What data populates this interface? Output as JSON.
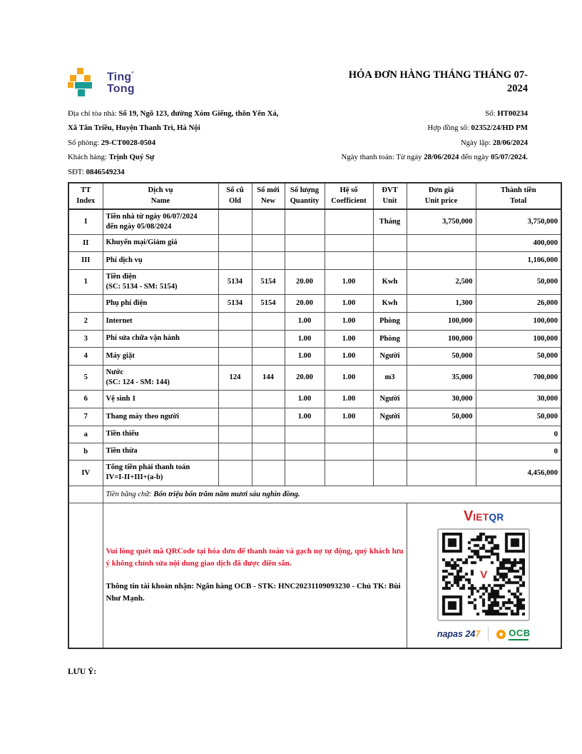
{
  "brand": {
    "name_line1": "Ting",
    "name_line2": "Tong",
    "reg_mark": "°"
  },
  "title": "HÓA ĐƠN HÀNG THÁNG THÁNG 07-\n2024",
  "info_left": {
    "address_label": "Địa chỉ tòa nhà: ",
    "address_value_line1": "Số 19, Ngõ 123, đường Xóm Giếng, thôn Yên Xá,",
    "address_value_line2": "Xã Tân Triều, Huyện Thanh Trì, Hà Nội",
    "room_label": "Số phòng: ",
    "room_value": "29-CT0028-0504",
    "customer_label": "Khách hàng: ",
    "customer_value": "Trịnh Quý Sự",
    "phone_label": "SĐT: ",
    "phone_value": "0846549234"
  },
  "info_right": {
    "invoice_no_label": "Số: ",
    "invoice_no_value": "HT00234",
    "contract_label": "Hợp đồng số: ",
    "contract_value": "02352/24/HD PM",
    "issue_date_label": "Ngày lập: ",
    "issue_date_value": "28/06/2024",
    "payment_label": "Ngày thanh toán: Từ ngày ",
    "payment_from": "28/06/2024",
    "payment_sep": " đến ngày ",
    "payment_to": "05/07/2024."
  },
  "table": {
    "headers": [
      "TT\nIndex",
      "Dịch vụ\nName",
      "Số cũ\nOld",
      "Số mới\nNew",
      "Số lượng\nQuantity",
      "Hệ số\nCoefficient",
      "ĐVT\nUnit",
      "Đơn giá\nUnit price",
      "Thành tiền\nTotal"
    ],
    "rows": [
      {
        "tt": "I",
        "name": "Tiền nhà từ ngày 06/07/2024\nđến ngày 05/08/2024",
        "old": "",
        "new": "",
        "qty": "",
        "coef": "",
        "unit": "Tháng",
        "price": "3,750,000",
        "total": "3,750,000"
      },
      {
        "tt": "II",
        "name": "Khuyến mại/Giảm giá",
        "old": "",
        "new": "",
        "qty": "",
        "coef": "",
        "unit": "",
        "price": "",
        "total": "400,000"
      },
      {
        "tt": "III",
        "name": "Phí dịch vụ",
        "old": "",
        "new": "",
        "qty": "",
        "coef": "",
        "unit": "",
        "price": "",
        "total": "1,106,000"
      },
      {
        "tt": "1",
        "name": "Tiền điện\n(SC: 5134 - SM: 5154)",
        "old": "5134",
        "new": "5154",
        "qty": "20.00",
        "coef": "1.00",
        "unit": "Kwh",
        "price": "2,500",
        "total": "50,000"
      },
      {
        "tt": "",
        "name": "Phụ phí điện",
        "old": "5134",
        "new": "5154",
        "qty": "20.00",
        "coef": "1.00",
        "unit": "Kwh",
        "price": "1,300",
        "total": "26,000"
      },
      {
        "tt": "2",
        "name": "Internet",
        "old": "",
        "new": "",
        "qty": "1.00",
        "coef": "1.00",
        "unit": "Phòng",
        "price": "100,000",
        "total": "100,000"
      },
      {
        "tt": "3",
        "name": "Phí sửa chữa vận hành",
        "old": "",
        "new": "",
        "qty": "1.00",
        "coef": "1.00",
        "unit": "Phòng",
        "price": "100,000",
        "total": "100,000"
      },
      {
        "tt": "4",
        "name": "Máy giặt",
        "old": "",
        "new": "",
        "qty": "1.00",
        "coef": "1.00",
        "unit": "Người",
        "price": "50,000",
        "total": "50,000"
      },
      {
        "tt": "5",
        "name": "Nước\n(SC: 124 - SM: 144)",
        "old": "124",
        "new": "144",
        "qty": "20.00",
        "coef": "1.00",
        "unit": "m3",
        "price": "35,000",
        "total": "700,000"
      },
      {
        "tt": "6",
        "name": "Vệ sinh 1",
        "old": "",
        "new": "",
        "qty": "1.00",
        "coef": "1.00",
        "unit": "Người",
        "price": "30,000",
        "total": "30,000"
      },
      {
        "tt": "7",
        "name": "Thang máy theo người",
        "old": "",
        "new": "",
        "qty": "1.00",
        "coef": "1.00",
        "unit": "Người",
        "price": "50,000",
        "total": "50,000"
      },
      {
        "tt": "a",
        "name": "Tiền thiếu",
        "old": "",
        "new": "",
        "qty": "",
        "coef": "",
        "unit": "",
        "price": "",
        "total": "0"
      },
      {
        "tt": "b",
        "name": "Tiền thừa",
        "old": "",
        "new": "",
        "qty": "",
        "coef": "",
        "unit": "",
        "price": "",
        "total": "0"
      },
      {
        "tt": "IV",
        "name": "Tổng tiền phải thanh toán\nIV=I-II+III+(a-b)",
        "old": "",
        "new": "",
        "qty": "",
        "coef": "",
        "unit": "",
        "price": "",
        "total": "4,456,000"
      }
    ]
  },
  "summary": {
    "words_label": "Tiền bằng chữ: ",
    "words_value": "Bốn triệu bốn trăm năm mươi sáu nghìn đồng."
  },
  "payment_section": {
    "qr_note": "Vui lòng quét mã QRCode tại hóa đơn để thanh toán và gạch nợ tự động, quý khách lưu ý không chỉnh sửa nội dung giao dịch đã được điền sẵn.",
    "account_prefix": "Thông tin tài khoản nhận: Ngân hàng OCB - STK: ",
    "account_number": "HNC20231109093230",
    "account_mid": " - Chủ TK: ",
    "account_holder": "Bùi Như Mạnh",
    "account_suffix": ".",
    "vietqr": {
      "v": "V",
      "iet": "IET",
      "qr": "QR"
    },
    "napas": {
      "name": "napas",
      "num_blue": "24",
      "num_gold": "7"
    },
    "ocb": {
      "name": "OCB"
    }
  },
  "footer_note": "LƯU Ý:",
  "colors": {
    "brand_orange": "#F2A71B",
    "brand_teal": "#189C94",
    "brand_navy": "#3D3A80",
    "alert_red": "#E8112D",
    "vietqr_red": "#D8232A",
    "vietqr_blue": "#1445A7",
    "napas_navy": "#1B2F6E",
    "napas_gold": "#F2A71B",
    "ocb_orange": "#F59C00",
    "ocb_green": "#0E8A44"
  }
}
